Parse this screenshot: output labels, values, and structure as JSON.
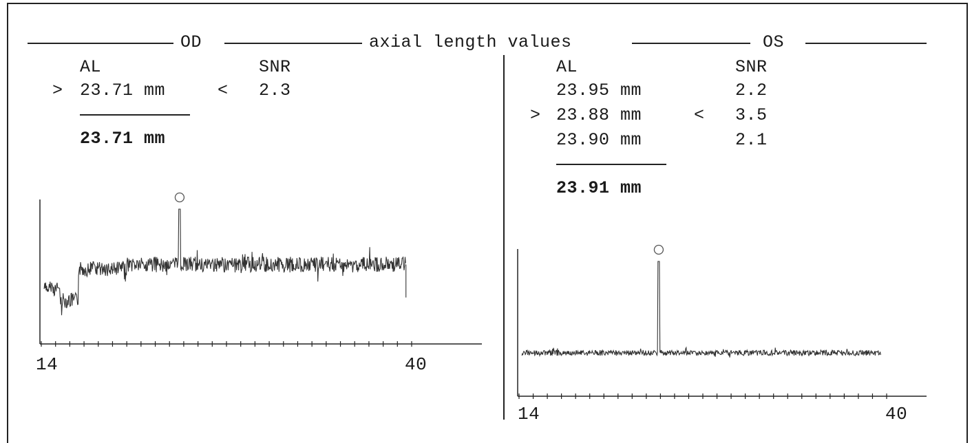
{
  "header": {
    "left_eye": "OD",
    "title": "axial length values",
    "right_eye": "OS"
  },
  "od": {
    "col_al": "AL",
    "col_snr": "SNR",
    "measurements": [
      {
        "marker_left": ">",
        "al": "23.71 mm",
        "marker_right": "<",
        "snr": "2.3"
      }
    ],
    "average": "23.71 mm",
    "axis_labels": {
      "start": "14",
      "end": "40"
    }
  },
  "os": {
    "col_al": "AL",
    "col_snr": "SNR",
    "measurements": [
      {
        "marker_left": "",
        "al": "23.95 mm",
        "marker_right": "",
        "snr": "2.2"
      },
      {
        "marker_left": ">",
        "al": "23.88 mm",
        "marker_right": "<",
        "snr": "3.5"
      },
      {
        "marker_left": "",
        "al": "23.90 mm",
        "marker_right": "",
        "snr": "2.1"
      }
    ],
    "average": "23.91 mm",
    "axis_labels": {
      "start": "14",
      "end": "40"
    }
  },
  "chart_data": [
    {
      "type": "line",
      "name": "",
      "x_range": [
        14,
        40
      ],
      "x_tick_labels": [
        "14",
        "40"
      ],
      "peak_marker": "circle",
      "peak_x": 23.71,
      "baseline_noise": "high",
      "signal_steps": [
        {
          "x": 14.2,
          "level": 0.38
        },
        {
          "x": 15.3,
          "level": 0.3
        },
        {
          "x": 16.6,
          "level": 0.52
        },
        {
          "x": 20.0,
          "level": 0.55
        },
        {
          "x": 39.6,
          "level": 0.55
        }
      ],
      "peak_height": 1.0
    },
    {
      "type": "line",
      "name": "",
      "x_range": [
        14,
        40
      ],
      "x_tick_labels": [
        "14",
        "40"
      ],
      "peak_marker": "circle",
      "peak_x": 23.88,
      "baseline_noise": "low",
      "signal_steps": [
        {
          "x": 14.2,
          "level": 0.3
        },
        {
          "x": 39.6,
          "level": 0.3
        }
      ],
      "peak_height": 1.0
    }
  ]
}
